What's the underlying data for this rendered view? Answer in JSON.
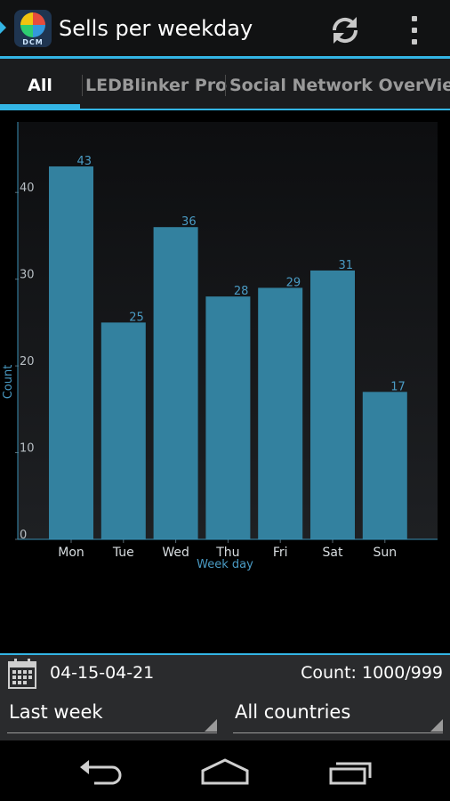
{
  "app": {
    "title": "Sells per weekday",
    "icon_name": "app-logo-icon",
    "icon_brand": "DCM"
  },
  "actions": {
    "refresh_icon": "refresh-icon",
    "overflow_icon": "overflow-menu-icon"
  },
  "tabs": [
    {
      "label": "All",
      "active": true
    },
    {
      "label": "LEDBlinker Pro",
      "active": false
    },
    {
      "label": "Social Network OverView",
      "active": false
    }
  ],
  "chart_data": {
    "type": "bar",
    "categories": [
      "Mon",
      "Tue",
      "Wed",
      "Thu",
      "Fri",
      "Sat",
      "Sun"
    ],
    "values": [
      43,
      25,
      36,
      28,
      29,
      31,
      17
    ],
    "xlabel": "Week day",
    "ylabel": "Count",
    "ylim": [
      0,
      45
    ],
    "yticks": [
      0,
      10,
      20,
      30,
      40
    ],
    "bar_color": "#33819f",
    "label_color": "#4a9bc4",
    "grid": false
  },
  "footer": {
    "calendar_icon": "calendar-icon",
    "date_range": "04-15-04-21",
    "count": "Count: 1000/999",
    "period_select": "Last week",
    "country_select": "All countries"
  },
  "colors": {
    "accent": "#33b5e5"
  },
  "navbar": {
    "back_icon": "back-icon",
    "home_icon": "home-icon",
    "recents_icon": "recent-apps-icon"
  }
}
